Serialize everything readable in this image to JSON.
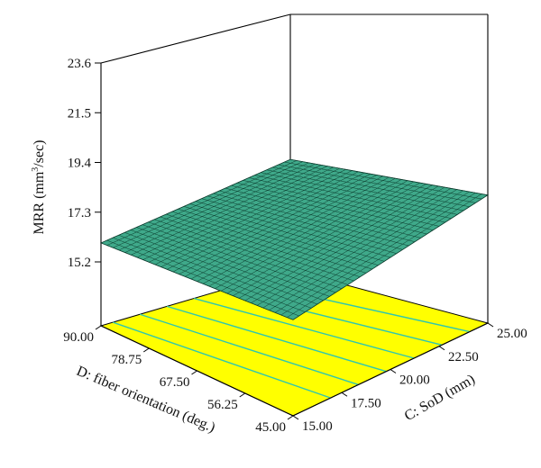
{
  "chart_data": {
    "type": "surface",
    "zlabel_main": "MRR (mm",
    "zlabel_sup": "3",
    "zlabel_tail": "/sec)",
    "xlabel": "C: SoD (mm)",
    "ylabel": "D: fiber orientation (deg.)",
    "x_ticks": [
      "15.00",
      "17.50",
      "20.00",
      "22.50",
      "25.00"
    ],
    "y_ticks": [
      "45.00",
      "56.25",
      "67.50",
      "78.75",
      "90.00"
    ],
    "z_ticks": [
      "15.2",
      "17.3",
      "19.4",
      "21.5",
      "23.6"
    ],
    "x_range": [
      15,
      25
    ],
    "y_range": [
      45,
      90
    ],
    "z_range": [
      15.2,
      23.6
    ],
    "surface_corners": [
      {
        "x": 15,
        "y": 90,
        "z": 16.5
      },
      {
        "x": 15,
        "y": 45,
        "z": 17.4
      },
      {
        "x": 25,
        "y": 45,
        "z": 19.6
      },
      {
        "x": 25,
        "y": 90,
        "z": 18.4
      }
    ],
    "contour_lines": 6,
    "colors": {
      "surface": "#3fa98a",
      "mesh": "#0b3a2c",
      "floor": "#ffff00",
      "contour": "#2fc6b0"
    }
  }
}
